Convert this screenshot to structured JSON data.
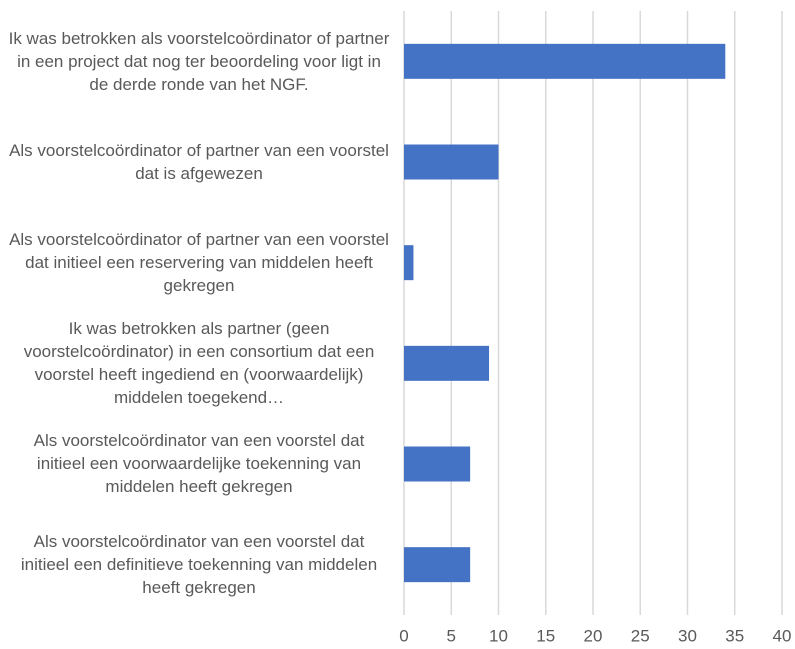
{
  "chart_data": {
    "type": "bar",
    "orientation": "horizontal",
    "categories": [
      "Ik was betrokken als voorstelcoördinator of partner in een project dat nog ter beoordeling voor ligt in de derde ronde van het NGF.",
      "Als voorstelcoördinator of partner van een voorstel dat is afgewezen",
      "Als voorstelcoördinator of partner van een voorstel dat initieel een reservering van middelen heeft gekregen",
      "Ik was betrokken als partner (geen voorstelcoördinator) in een consortium dat een voorstel heeft ingediend en (voorwaardelijk) middelen toegekend…",
      "Als voorstelcoördinator van een voorstel dat initieel een voorwaardelijke toekenning van middelen heeft gekregen",
      "Als voorstelcoördinator van een voorstel dat initieel een definitieve toekenning van middelen heeft gekregen"
    ],
    "values": [
      34,
      10,
      1,
      9,
      7,
      7
    ],
    "color": "#4472c4",
    "xlim": [
      0,
      40
    ],
    "xticks": [
      0,
      5,
      10,
      15,
      20,
      25,
      30,
      35,
      40
    ],
    "grid": true
  }
}
